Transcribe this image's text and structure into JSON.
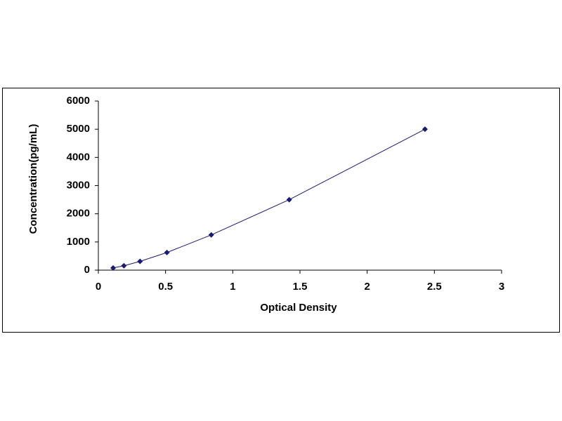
{
  "chart_data": {
    "type": "scatter",
    "line": true,
    "x_label": "Optical Density",
    "y_label": "Concentration(pg/mL)",
    "x": [
      0.11,
      0.19,
      0.31,
      0.51,
      0.84,
      1.42,
      2.43
    ],
    "values": [
      78,
      156,
      312,
      625,
      1250,
      2500,
      5000
    ],
    "color": "#1a1a6e",
    "xlim": [
      0,
      3
    ],
    "xticks": [
      0,
      0.5,
      1,
      1.5,
      2,
      2.5,
      3
    ],
    "ylim": [
      0,
      6000
    ],
    "yticks": [
      0,
      1000,
      2000,
      3000,
      4000,
      5000,
      6000
    ],
    "grid": false
  }
}
